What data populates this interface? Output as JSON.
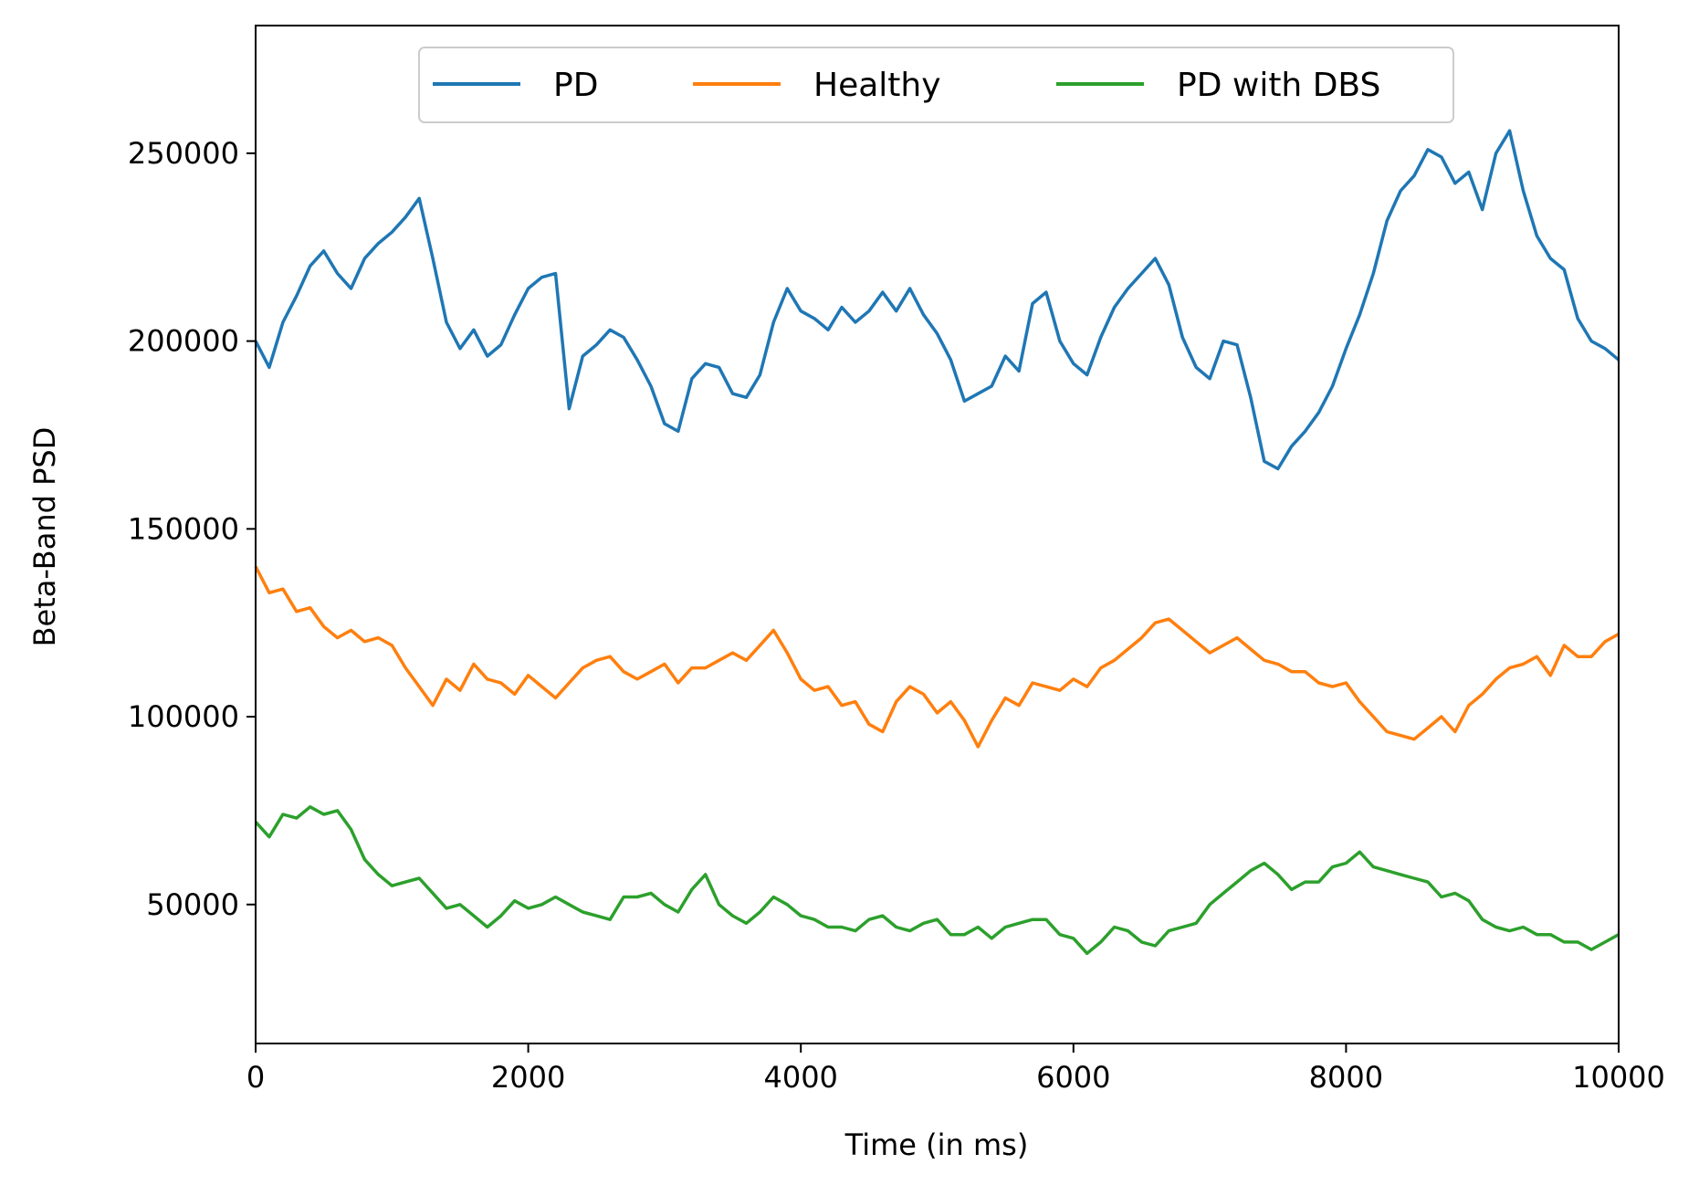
{
  "chart_data": {
    "type": "line",
    "title": "",
    "xlabel": "Time (in ms)",
    "ylabel": "Beta-Band PSD",
    "xlim": [
      0,
      10000
    ],
    "ylim": [
      13000,
      284000
    ],
    "xticks": [
      0,
      2000,
      4000,
      6000,
      8000,
      10000
    ],
    "xtick_labels": [
      "0",
      "2000",
      "4000",
      "6000",
      "8000",
      "10000"
    ],
    "yticks": [
      50000,
      100000,
      150000,
      200000,
      250000
    ],
    "ytick_labels": [
      "50000",
      "100000",
      "150000",
      "200000",
      "250000"
    ],
    "grid": false,
    "legend": {
      "position": "top-center",
      "columns": 3
    },
    "series": [
      {
        "name": "PD",
        "color": "#1f77b4",
        "x": [
          0,
          100,
          200,
          300,
          400,
          500,
          600,
          700,
          800,
          900,
          1000,
          1100,
          1200,
          1300,
          1400,
          1500,
          1600,
          1700,
          1800,
          1900,
          2000,
          2100,
          2200,
          2300,
          2400,
          2500,
          2600,
          2700,
          2800,
          2900,
          3000,
          3100,
          3200,
          3300,
          3400,
          3500,
          3600,
          3700,
          3800,
          3900,
          4000,
          4100,
          4200,
          4300,
          4400,
          4500,
          4600,
          4700,
          4800,
          4900,
          5000,
          5100,
          5200,
          5300,
          5400,
          5500,
          5600,
          5700,
          5800,
          5900,
          6000,
          6100,
          6200,
          6300,
          6400,
          6500,
          6600,
          6700,
          6800,
          6900,
          7000,
          7100,
          7200,
          7300,
          7400,
          7500,
          7600,
          7700,
          7800,
          7900,
          8000,
          8100,
          8200,
          8300,
          8400,
          8500,
          8600,
          8700,
          8800,
          8900,
          9000,
          9100,
          9200,
          9300,
          9400,
          9500,
          9600,
          9700,
          9800,
          9900,
          10000
        ],
        "values": [
          200000,
          193000,
          205000,
          212000,
          220000,
          224000,
          218000,
          214000,
          222000,
          226000,
          229000,
          233000,
          238000,
          222000,
          205000,
          198000,
          203000,
          196000,
          199000,
          207000,
          214000,
          217000,
          218000,
          182000,
          196000,
          199000,
          203000,
          201000,
          195000,
          188000,
          178000,
          176000,
          190000,
          194000,
          193000,
          186000,
          185000,
          191000,
          205000,
          214000,
          208000,
          206000,
          203000,
          209000,
          205000,
          208000,
          213000,
          208000,
          214000,
          207000,
          202000,
          195000,
          184000,
          186000,
          188000,
          196000,
          192000,
          210000,
          213000,
          200000,
          194000,
          191000,
          201000,
          209000,
          214000,
          218000,
          222000,
          215000,
          201000,
          193000,
          190000,
          200000,
          199000,
          185000,
          168000,
          166000,
          172000,
          176000,
          181000,
          188000,
          198000,
          207000,
          218000,
          232000,
          240000,
          244000,
          251000,
          249000,
          242000,
          245000,
          235000,
          250000,
          256000,
          240000,
          228000,
          222000,
          219000,
          206000,
          200000,
          198000,
          195000
        ]
      },
      {
        "name": "Healthy",
        "color": "#ff7f0e",
        "x": [
          0,
          100,
          200,
          300,
          400,
          500,
          600,
          700,
          800,
          900,
          1000,
          1100,
          1200,
          1300,
          1400,
          1500,
          1600,
          1700,
          1800,
          1900,
          2000,
          2100,
          2200,
          2300,
          2400,
          2500,
          2600,
          2700,
          2800,
          2900,
          3000,
          3100,
          3200,
          3300,
          3400,
          3500,
          3600,
          3700,
          3800,
          3900,
          4000,
          4100,
          4200,
          4300,
          4400,
          4500,
          4600,
          4700,
          4800,
          4900,
          5000,
          5100,
          5200,
          5300,
          5400,
          5500,
          5600,
          5700,
          5800,
          5900,
          6000,
          6100,
          6200,
          6300,
          6400,
          6500,
          6600,
          6700,
          6800,
          6900,
          7000,
          7100,
          7200,
          7300,
          7400,
          7500,
          7600,
          7700,
          7800,
          7900,
          8000,
          8100,
          8200,
          8300,
          8400,
          8500,
          8600,
          8700,
          8800,
          8900,
          9000,
          9100,
          9200,
          9300,
          9400,
          9500,
          9600,
          9700,
          9800,
          9900,
          10000
        ],
        "values": [
          140000,
          133000,
          134000,
          128000,
          129000,
          124000,
          121000,
          123000,
          120000,
          121000,
          119000,
          113000,
          108000,
          103000,
          110000,
          107000,
          114000,
          110000,
          109000,
          106000,
          111000,
          108000,
          105000,
          109000,
          113000,
          115000,
          116000,
          112000,
          110000,
          112000,
          114000,
          109000,
          113000,
          113000,
          115000,
          117000,
          115000,
          119000,
          123000,
          117000,
          110000,
          107000,
          108000,
          103000,
          104000,
          98000,
          96000,
          104000,
          108000,
          106000,
          101000,
          104000,
          99000,
          92000,
          99000,
          105000,
          103000,
          109000,
          108000,
          107000,
          110000,
          108000,
          113000,
          115000,
          118000,
          121000,
          125000,
          126000,
          123000,
          120000,
          117000,
          119000,
          121000,
          118000,
          115000,
          114000,
          112000,
          112000,
          109000,
          108000,
          109000,
          104000,
          100000,
          96000,
          95000,
          94000,
          97000,
          100000,
          96000,
          103000,
          106000,
          110000,
          113000,
          114000,
          116000,
          111000,
          119000,
          116000,
          116000,
          120000,
          122000
        ]
      },
      {
        "name": "PD with DBS",
        "color": "#2ca02c",
        "x": [
          0,
          100,
          200,
          300,
          400,
          500,
          600,
          700,
          800,
          900,
          1000,
          1100,
          1200,
          1300,
          1400,
          1500,
          1600,
          1700,
          1800,
          1900,
          2000,
          2100,
          2200,
          2300,
          2400,
          2500,
          2600,
          2700,
          2800,
          2900,
          3000,
          3100,
          3200,
          3300,
          3400,
          3500,
          3600,
          3700,
          3800,
          3900,
          4000,
          4100,
          4200,
          4300,
          4400,
          4500,
          4600,
          4700,
          4800,
          4900,
          5000,
          5100,
          5200,
          5300,
          5400,
          5500,
          5600,
          5700,
          5800,
          5900,
          6000,
          6100,
          6200,
          6300,
          6400,
          6500,
          6600,
          6700,
          6800,
          6900,
          7000,
          7100,
          7200,
          7300,
          7400,
          7500,
          7600,
          7700,
          7800,
          7900,
          8000,
          8100,
          8200,
          8300,
          8400,
          8500,
          8600,
          8700,
          8800,
          8900,
          9000,
          9100,
          9200,
          9300,
          9400,
          9500,
          9600,
          9700,
          9800,
          9900,
          10000
        ],
        "values": [
          72000,
          68000,
          74000,
          73000,
          76000,
          74000,
          75000,
          70000,
          62000,
          58000,
          55000,
          56000,
          57000,
          53000,
          49000,
          50000,
          47000,
          44000,
          47000,
          51000,
          49000,
          50000,
          52000,
          50000,
          48000,
          47000,
          46000,
          52000,
          52000,
          53000,
          50000,
          48000,
          54000,
          58000,
          50000,
          47000,
          45000,
          48000,
          52000,
          50000,
          47000,
          46000,
          44000,
          44000,
          43000,
          46000,
          47000,
          44000,
          43000,
          45000,
          46000,
          42000,
          42000,
          44000,
          41000,
          44000,
          45000,
          46000,
          46000,
          42000,
          41000,
          37000,
          40000,
          44000,
          43000,
          40000,
          39000,
          43000,
          44000,
          45000,
          50000,
          53000,
          56000,
          59000,
          61000,
          58000,
          54000,
          56000,
          56000,
          60000,
          61000,
          64000,
          60000,
          59000,
          58000,
          57000,
          56000,
          52000,
          53000,
          51000,
          46000,
          44000,
          43000,
          44000,
          42000,
          42000,
          40000,
          40000,
          38000,
          40000,
          42000
        ]
      }
    ]
  }
}
